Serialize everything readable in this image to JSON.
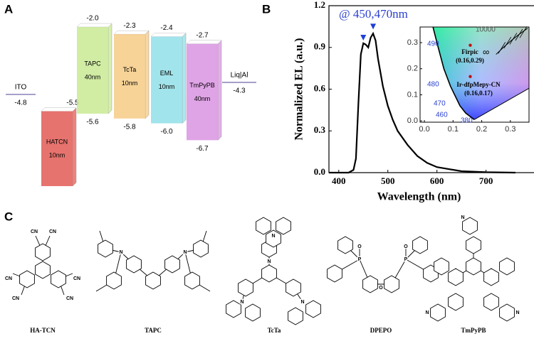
{
  "panel_labels": [
    "A",
    "B",
    "C"
  ],
  "energy_diagram": {
    "electrodes": [
      {
        "name": "ITO",
        "level": {
          "value": -4.8,
          "label": "-4.8"
        }
      },
      {
        "name": "Liq|Al",
        "level": {
          "value": -4.3,
          "label": "-4.3"
        }
      }
    ],
    "layers": [
      {
        "name": "HATCN",
        "thickness": "10nm",
        "color": "#e35a55",
        "lumo": {
          "value": -5.5,
          "label": "-5.5"
        }
      },
      {
        "name": "TAPC",
        "thickness": "40nm",
        "color": "#c9ea94",
        "lumo": {
          "value": -2.0,
          "label": "-2.0"
        },
        "homo": {
          "value": -5.6,
          "label": "-5.6"
        }
      },
      {
        "name": "TcTa",
        "thickness": "10nm",
        "color": "#f6cb86",
        "lumo": {
          "value": -2.3,
          "label": "-2.3"
        },
        "homo": {
          "value": -5.8,
          "label": "-5.8"
        }
      },
      {
        "name": "EML",
        "thickness": "10nm",
        "color": "#92dfe8",
        "lumo": {
          "value": -2.4,
          "label": "-2.4"
        },
        "homo": {
          "value": -6.0,
          "label": "-6.0"
        }
      },
      {
        "name": "TmPyPB",
        "thickness": "40nm",
        "color": "#d994e2",
        "lumo": {
          "value": -2.7,
          "label": "-2.7"
        },
        "homo": {
          "value": -6.7,
          "label": "-6.7"
        }
      }
    ]
  },
  "chart_data": {
    "type": "line",
    "x_label": "Wavelength (nm)",
    "y_label": "Normalized EL (a.u.)",
    "annotation": "@ 450,470nm",
    "color": "#000000",
    "x": [
      380,
      420,
      430,
      435,
      440,
      445,
      450,
      455,
      460,
      465,
      470,
      475,
      480,
      490,
      500,
      510,
      520,
      540,
      560,
      580,
      600,
      650,
      700,
      760
    ],
    "values": [
      0,
      0,
      0.02,
      0.1,
      0.5,
      0.85,
      0.93,
      0.92,
      0.9,
      0.97,
      1.0,
      0.95,
      0.82,
      0.62,
      0.48,
      0.38,
      0.3,
      0.2,
      0.12,
      0.07,
      0.04,
      0.01,
      0.003,
      0
    ],
    "peak_markers": {
      "x": [
        450,
        470
      ],
      "values": [
        0.96,
        1.04
      ],
      "color": "#1f3fd6"
    },
    "xlim": [
      380,
      805
    ],
    "ylim": [
      0,
      1.2
    ],
    "xticks": [
      400,
      500,
      600,
      700
    ],
    "yticks": [
      {
        "value": 0,
        "label": "0.0"
      },
      0.3,
      0.6,
      0.9,
      1.2
    ],
    "inset": {
      "xlim": [
        -0.015,
        0.365
      ],
      "ylim": [
        -0.005,
        0.36
      ],
      "xticks": [
        {
          "value": 0,
          "label": "0.0"
        },
        0.1,
        0.2,
        0.3
      ],
      "yticks": [
        {
          "value": 0,
          "label": "0.0"
        },
        0.1,
        0.2,
        0.3
      ],
      "points": [
        {
          "name": "Firpic",
          "coords": "(0.16,0.29)",
          "x": 0.16,
          "y": 0.29
        },
        {
          "name": "Ir-dfpMepy-CN",
          "coords": "(0.16,0.17)",
          "x": 0.16,
          "y": 0.17
        }
      ],
      "locus_labels": [
        490,
        480,
        470,
        460,
        380,
        10000,
        "∞"
      ]
    }
  },
  "structures": [
    {
      "name": "HA-TCN",
      "atoms": [
        "CN",
        "CN",
        "CN",
        "CN",
        "CN",
        "CN"
      ]
    },
    {
      "name": "TAPC",
      "atoms": [
        "N",
        "N"
      ]
    },
    {
      "name": "TcTa",
      "atoms": [
        "N",
        "N",
        "N",
        "N"
      ]
    },
    {
      "name": "DPEPO",
      "atoms": [
        "P",
        "O",
        "O",
        "P",
        "O"
      ]
    },
    {
      "name": "TmPyPB",
      "atoms": [
        "N",
        "N",
        "N"
      ]
    }
  ]
}
